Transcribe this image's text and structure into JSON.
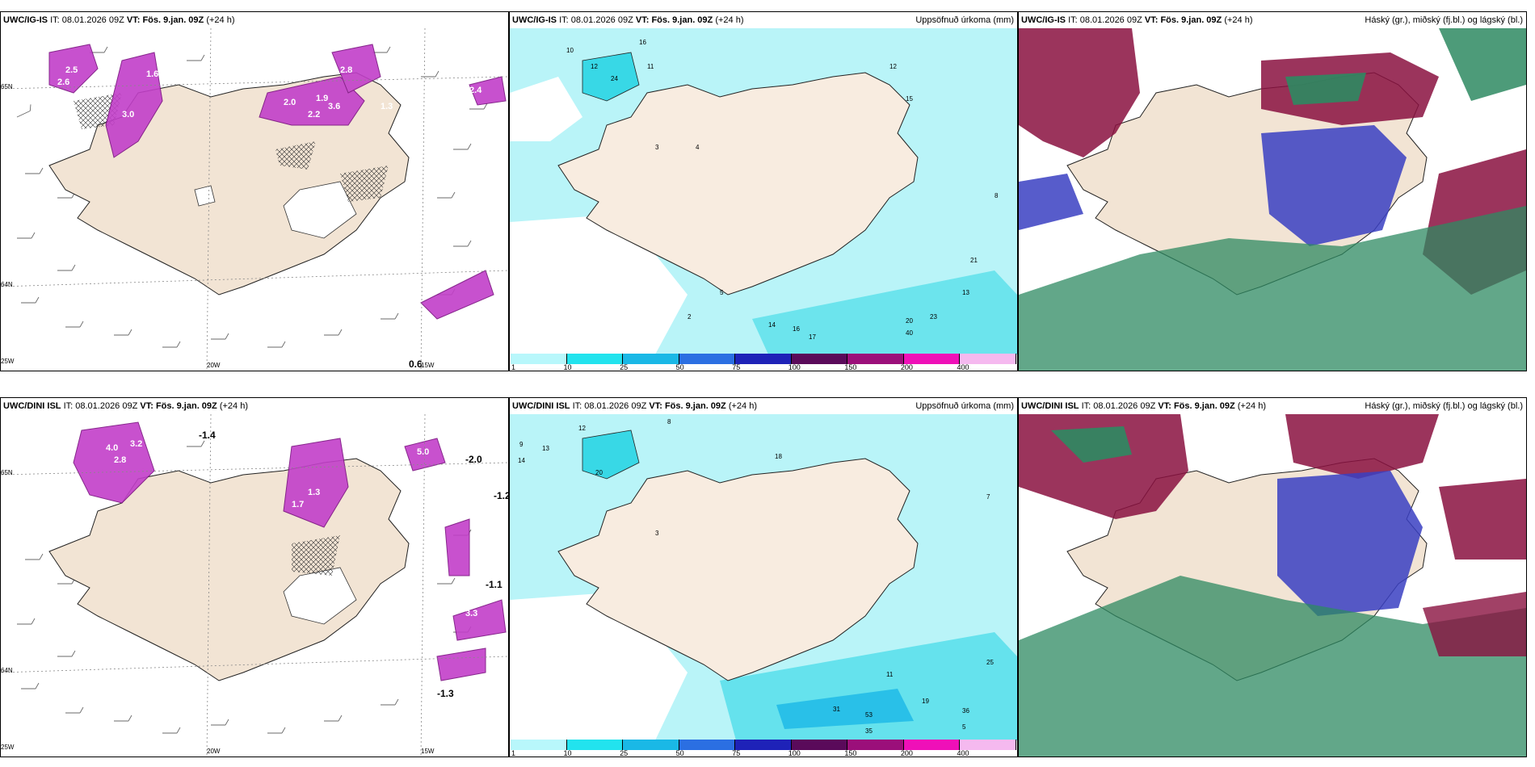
{
  "panels": {
    "p1": {
      "model": "UWC/IG-IS",
      "init_label": "IT:",
      "init": "08.01.2026 09Z",
      "valid_label": "VT:",
      "valid": "Fös. 9.jan. 09Z",
      "lead": "(+24 h)",
      "right_title": ""
    },
    "p2": {
      "model": "UWC/IG-IS",
      "init_label": "IT:",
      "init": "08.01.2026 09Z",
      "valid_label": "VT:",
      "valid": "Fös. 9.jan. 09Z",
      "lead": "(+24 h)",
      "right_title": "Uppsöfnuð úrkoma (mm)"
    },
    "p3": {
      "model": "UWC/IG-IS",
      "init_label": "IT:",
      "init": "08.01.2026 09Z",
      "valid_label": "VT:",
      "valid": "Fös. 9.jan. 09Z",
      "lead": "(+24 h)",
      "right_title": "Háský (gr.), miðský (fj.bl.) og lágský (bl.)"
    },
    "p4": {
      "model": "UWC/DINI ISL",
      "init_label": "IT:",
      "init": "08.01.2026 09Z",
      "valid_label": "VT:",
      "valid": "Fös. 9.jan. 09Z",
      "lead": "(+24 h)",
      "right_title": ""
    },
    "p5": {
      "model": "UWC/DINI ISL",
      "init_label": "IT:",
      "init": "08.01.2026 09Z",
      "valid_label": "VT:",
      "valid": "Fös. 9.jan. 09Z",
      "lead": "(+24 h)",
      "right_title": "Uppsöfnuð úrkoma (mm)"
    },
    "p6": {
      "model": "UWC/DINI ISL",
      "init_label": "IT:",
      "init": "08.01.2026 09Z",
      "valid_label": "VT:",
      "valid": "Fös. 9.jan. 09Z",
      "lead": "(+24 h)",
      "right_title": "Háský (gr.), miðský (fj.bl.) og lágský (bl.)"
    }
  },
  "grid_labels": {
    "lat_upper": "65N",
    "lat_lower": "64N",
    "lon_left": "25W",
    "lon_mid": "20W",
    "lon_right": "15W"
  },
  "colorbar": {
    "ticks": [
      "1",
      "10",
      "25",
      "50",
      "75",
      "100",
      "150",
      "200",
      "400"
    ],
    "colors": [
      "#b8f7fb",
      "#22e3ee",
      "#1ab8e6",
      "#2b6fe2",
      "#1e22b8",
      "#5a0a5a",
      "#9b0f7a",
      "#ef10b8",
      "#f5b9ef"
    ]
  },
  "colors": {
    "land": "#f2e4d4",
    "precip_light": "#b9f4f8",
    "precip_mid": "#38d8e6",
    "snow_magenta": "#c23fc9",
    "high_cloud": "#8a1140",
    "mid_cloud": "#2e8a62",
    "low_cloud": "#3a3fc2"
  },
  "p1_values": [
    "2.5",
    "2.6",
    "3.0",
    "1.6",
    "2.0",
    "2.2",
    "1.3",
    "3.6",
    "0.6",
    "2.4",
    "1.9",
    "2.8"
  ],
  "p2_values": [
    "16",
    "10",
    "12",
    "11",
    "24",
    "12",
    "15",
    "8",
    "3",
    "4",
    "21",
    "13",
    "23",
    "20",
    "40",
    "17",
    "14",
    "16",
    "5",
    "2"
  ],
  "p4_values": [
    "-1.4",
    "-2.0",
    "-1.2",
    "-1.1",
    "-1.3",
    "2.8",
    "4.0",
    "3.2",
    "1.7",
    "5.0",
    "3.3",
    "1.3"
  ],
  "p5_values": [
    "8",
    "14",
    "12",
    "13",
    "18",
    "7",
    "9",
    "31",
    "53",
    "35",
    "36",
    "25",
    "11",
    "19",
    "20",
    "5",
    "3"
  ]
}
